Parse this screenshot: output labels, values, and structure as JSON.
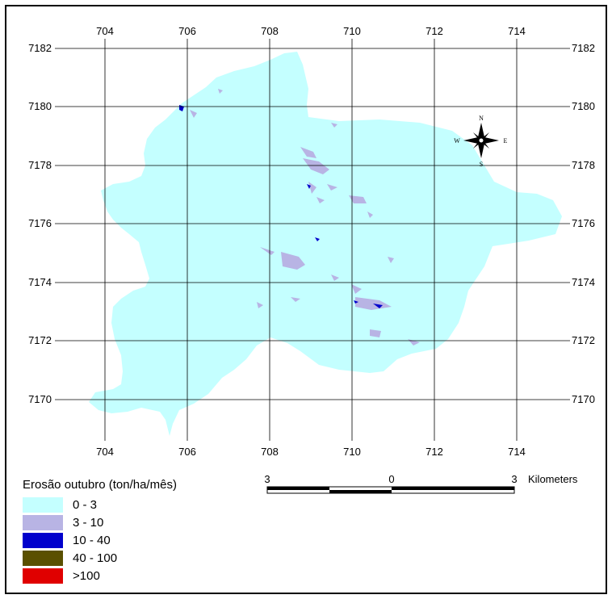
{
  "map": {
    "x_ticks": [
      "704",
      "706",
      "708",
      "710",
      "712",
      "714"
    ],
    "y_ticks": [
      "7182",
      "7180",
      "7178",
      "7176",
      "7174",
      "7172",
      "7170"
    ],
    "north_arrow": {
      "n": "N",
      "s": "S",
      "e": "E",
      "w": "W",
      "icon": "compass-rose-icon"
    },
    "scale_bar": {
      "left": "3",
      "middle": "0",
      "right": "3",
      "unit": "Kilometers"
    },
    "colors": {
      "class_0_3": "#c4ffff",
      "class_3_10": "#b8b4e4",
      "class_10_40": "#0000cc",
      "class_40_100": "#5a5000",
      "class_gt_100": "#e00000"
    }
  },
  "legend": {
    "title": "Erosão outubro (ton/ha/mês)",
    "items": [
      {
        "label": "0 - 3",
        "color": "#c4ffff"
      },
      {
        "label": "3 - 10",
        "color": "#b8b4e4"
      },
      {
        "label": "10 - 40",
        "color": "#0000cc"
      },
      {
        "label": "40 - 100",
        "color": "#5a5000"
      },
      {
        "label": ">100",
        "color": "#e00000"
      }
    ]
  }
}
